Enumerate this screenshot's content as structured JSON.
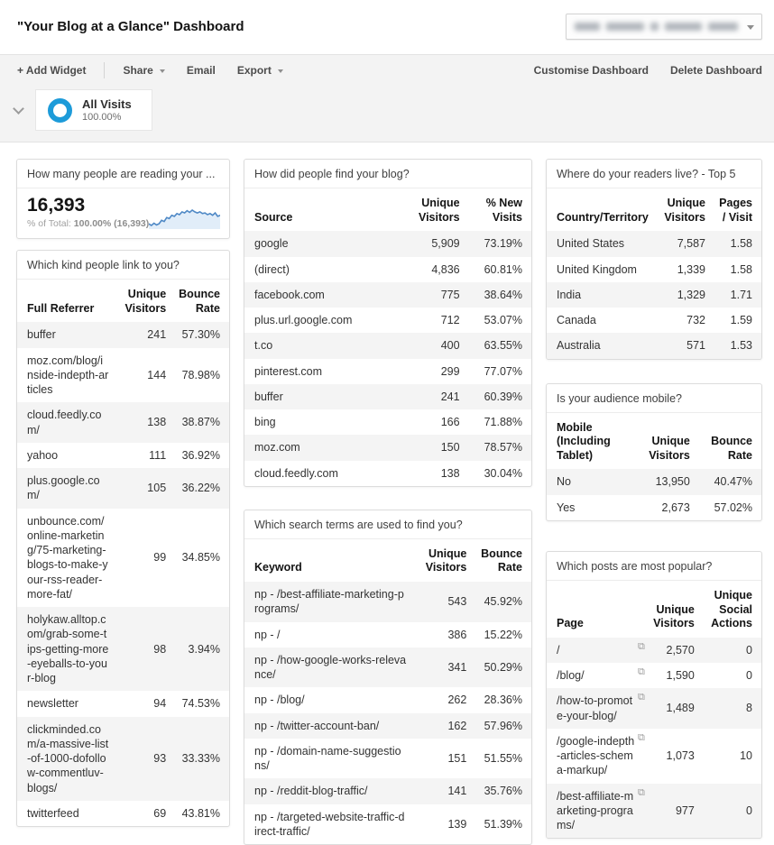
{
  "header": {
    "title": "\"Your Blog at a Glance\" Dashboard"
  },
  "toolbar": {
    "add_widget": "+ Add Widget",
    "share": "Share",
    "email": "Email",
    "export": "Export",
    "customise": "Customise Dashboard",
    "delete": "Delete Dashboard"
  },
  "segment": {
    "name": "All Visits",
    "percent": "100.00%"
  },
  "colors": {
    "accent_blue": "#1d9bd9",
    "spark_line": "#4f89c6",
    "spark_fill": "#e1edf9",
    "zebra_row": "#f4f4f4"
  },
  "widgets": {
    "visitors": {
      "title": "How many people are reading your ...",
      "value": "16,393",
      "total_label": "% of Total:",
      "total_value": "100.00% (16,393)",
      "sparkline": [
        2.0,
        1.7,
        2.1,
        1.8,
        2.0,
        2.6,
        2.4,
        3.1,
        2.9,
        3.5,
        3.3,
        3.8,
        3.6,
        4.1,
        3.9,
        4.3,
        4.0,
        4.4,
        4.1,
        3.9,
        4.1,
        3.8,
        3.9,
        3.6,
        3.8,
        3.5,
        3.9,
        3.3,
        3.5,
        3.7
      ]
    },
    "referrers": {
      "title": "Which kind people link to you?",
      "columns": [
        "Full Referrer",
        "Unique Visitors",
        "Bounce Rate"
      ],
      "rows": [
        [
          "buffer",
          "241",
          "57.30%"
        ],
        [
          "moz.com/blog/inside-indepth-articles",
          "144",
          "78.98%"
        ],
        [
          "cloud.feedly.com/",
          "138",
          "38.87%"
        ],
        [
          "yahoo",
          "111",
          "36.92%"
        ],
        [
          "plus.google.com/",
          "105",
          "36.22%"
        ],
        [
          "unbounce.com/online-marketing/75-marketing-blogs-to-make-your-rss-reader-more-fat/",
          "99",
          "34.85%"
        ],
        [
          "holykaw.alltop.com/grab-some-tips-getting-more-eyeballs-to-your-blog",
          "98",
          "3.94%"
        ],
        [
          "newsletter",
          "94",
          "74.53%"
        ],
        [
          "clickminded.com/a-massive-list-of-1000-dofollow-commentluv-blogs/",
          "93",
          "33.33%"
        ],
        [
          "twitterfeed",
          "69",
          "43.81%"
        ]
      ]
    },
    "sources": {
      "title": "How did people find your blog?",
      "columns": [
        "Source",
        "Unique Visitors",
        "% New Visits"
      ],
      "rows": [
        [
          "google",
          "5,909",
          "73.19%"
        ],
        [
          "(direct)",
          "4,836",
          "60.81%"
        ],
        [
          "facebook.com",
          "775",
          "38.64%"
        ],
        [
          "plus.url.google.com",
          "712",
          "53.07%"
        ],
        [
          "t.co",
          "400",
          "63.55%"
        ],
        [
          "pinterest.com",
          "299",
          "77.07%"
        ],
        [
          "buffer",
          "241",
          "60.39%"
        ],
        [
          "bing",
          "166",
          "71.88%"
        ],
        [
          "moz.com",
          "150",
          "78.57%"
        ],
        [
          "cloud.feedly.com",
          "138",
          "30.04%"
        ]
      ]
    },
    "keywords": {
      "title": "Which search terms are used to find you?",
      "columns": [
        "Keyword",
        "Unique Visitors",
        "Bounce Rate"
      ],
      "rows": [
        [
          "np - /best-affiliate-marketing-programs/",
          "543",
          "45.92%"
        ],
        [
          "np - /",
          "386",
          "15.22%"
        ],
        [
          "np - /how-google-works-relevance/",
          "341",
          "50.29%"
        ],
        [
          "np - /blog/",
          "262",
          "28.36%"
        ],
        [
          "np - /twitter-account-ban/",
          "162",
          "57.96%"
        ],
        [
          "np - /domain-name-suggestions/",
          "151",
          "51.55%"
        ],
        [
          "np - /reddit-blog-traffic/",
          "141",
          "35.76%"
        ],
        [
          "np - /targeted-website-traffic-direct-traffic/",
          "139",
          "51.39%"
        ]
      ]
    },
    "countries": {
      "title": "Where do your readers live? - Top 5",
      "columns": [
        "Country/Territory",
        "Unique Visitors",
        "Pages / Visit"
      ],
      "rows": [
        [
          "United States",
          "7,587",
          "1.58"
        ],
        [
          "United Kingdom",
          "1,339",
          "1.58"
        ],
        [
          "India",
          "1,329",
          "1.71"
        ],
        [
          "Canada",
          "732",
          "1.59"
        ],
        [
          "Australia",
          "571",
          "1.53"
        ]
      ]
    },
    "mobile": {
      "title": "Is your audience mobile?",
      "columns": [
        "Mobile (Including Tablet)",
        "Unique Visitors",
        "Bounce Rate"
      ],
      "rows": [
        [
          "No",
          "13,950",
          "40.47%"
        ],
        [
          "Yes",
          "2,673",
          "57.02%"
        ]
      ]
    },
    "posts": {
      "title": "Which posts are most popular?",
      "columns": [
        "Page",
        "Unique Visitors",
        "Unique Social Actions"
      ],
      "link_icon": true,
      "rows": [
        [
          "/",
          "2,570",
          "0"
        ],
        [
          "/blog/",
          "1,590",
          "0"
        ],
        [
          "/how-to-promote-your-blog/",
          "1,489",
          "8"
        ],
        [
          "/google-indepth-articles-schema-markup/",
          "1,073",
          "10"
        ],
        [
          "/best-affiliate-marketing-programs/",
          "977",
          "0"
        ]
      ]
    }
  }
}
